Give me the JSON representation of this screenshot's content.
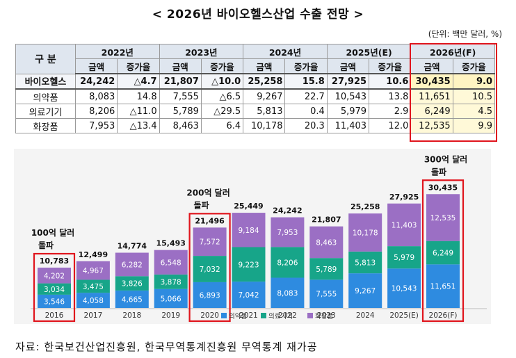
{
  "title": "< 2026년 바이오헬스산업 수출 전망 >",
  "unit": "(단위: 백만 달러, %)",
  "table": {
    "corner": "구  분",
    "years": [
      "2022년",
      "2023년",
      "2024년",
      "2025년(E)",
      "2026년(F)"
    ],
    "sub_headers": [
      "금액",
      "증가율"
    ],
    "rows": [
      {
        "label": "바이오헬스",
        "cells": [
          "24,242",
          "△4.7",
          "21,807",
          "△10.0",
          "25,258",
          "15.8",
          "27,925",
          "10.6",
          "30,435",
          "9.0"
        ]
      },
      {
        "label": "의약품",
        "cells": [
          "8,083",
          "14.8",
          "7,555",
          "△6.5",
          "9,267",
          "22.7",
          "10,543",
          "13.8",
          "11,651",
          "10.5"
        ]
      },
      {
        "label": "의료기기",
        "cells": [
          "8,206",
          "△11.0",
          "5,789",
          "△29.5",
          "5,813",
          "0.4",
          "5,979",
          "2.9",
          "6,249",
          "4.5"
        ]
      },
      {
        "label": "화장품",
        "cells": [
          "7,953",
          "△13.4",
          "8,463",
          "6.4",
          "10,178",
          "20.3",
          "11,403",
          "12.0",
          "12,535",
          "9.9"
        ]
      }
    ]
  },
  "chart_data": {
    "type": "bar",
    "stacked": true,
    "categories": [
      "2016",
      "2017",
      "2018",
      "2019",
      "2020",
      "2021",
      "2022",
      "2023",
      "2024",
      "2025(E)",
      "2026(F)"
    ],
    "series": [
      {
        "name": "의약품",
        "color": "#2e8be0",
        "values": [
          3546,
          4058,
          4665,
          5066,
          6893,
          7042,
          8083,
          7555,
          9267,
          10543,
          11651
        ]
      },
      {
        "name": "의료기기",
        "color": "#17a589",
        "values": [
          3034,
          3475,
          3826,
          3878,
          7032,
          9223,
          8206,
          5789,
          5813,
          5979,
          6249
        ]
      },
      {
        "name": "화장품",
        "color": "#9b6fc4",
        "values": [
          4202,
          4967,
          6282,
          6548,
          7572,
          9184,
          7953,
          8463,
          10178,
          11403,
          12535
        ]
      }
    ],
    "totals": [
      "10,783",
      "12,499",
      "14,774",
      "15,493",
      "21,496",
      "25,449",
      "24,242",
      "21,807",
      "25,258",
      "27,925",
      "30,435"
    ],
    "annotations": [
      {
        "index": 0,
        "text": [
          "100억 달러",
          "돌파"
        ]
      },
      {
        "index": 4,
        "text": [
          "200억 달러",
          "돌파"
        ]
      },
      {
        "index": 10,
        "text": [
          "300억 달러",
          "돌파"
        ]
      }
    ],
    "highlighted": [
      0,
      4,
      10
    ],
    "legend_position": "bottom",
    "ylim": [
      0,
      32000
    ],
    "grid": false
  },
  "source": "자료: 한국보건산업진흥원, 한국무역통계진흥원 무역통계 재가공"
}
